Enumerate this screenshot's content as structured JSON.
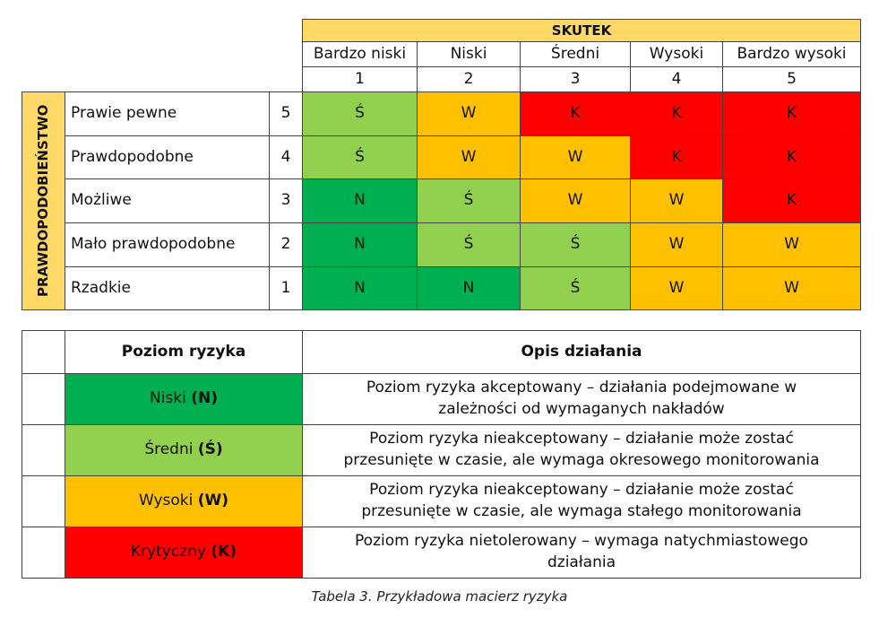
{
  "matrix": {
    "effect_title": "SKUTEK",
    "probability_title": "PRAWDOPODOBIEŃSTWO",
    "columns": [
      {
        "name": "Bardzo niski",
        "number": "1"
      },
      {
        "name": "Niski",
        "number": "2"
      },
      {
        "name": "Średni",
        "number": "3"
      },
      {
        "name": "Wysoki",
        "number": "4"
      },
      {
        "name": "Bardzo wysoki",
        "number": "5"
      }
    ],
    "rows": [
      {
        "label": "Prawie pewne",
        "number": "5",
        "cells": [
          {
            "text": "Ś",
            "color": "#92d050"
          },
          {
            "text": "W",
            "color": "#ffc000"
          },
          {
            "text": "K",
            "color": "#ff0000"
          },
          {
            "text": "K",
            "color": "#ff0000"
          },
          {
            "text": "K",
            "color": "#ff0000"
          }
        ]
      },
      {
        "label": "Prawdopodobne",
        "number": "4",
        "cells": [
          {
            "text": "Ś",
            "color": "#92d050"
          },
          {
            "text": "W",
            "color": "#ffc000"
          },
          {
            "text": "W",
            "color": "#ffc000"
          },
          {
            "text": "K",
            "color": "#ff0000"
          },
          {
            "text": "K",
            "color": "#ff0000"
          }
        ]
      },
      {
        "label": "Możliwe",
        "number": "3",
        "cells": [
          {
            "text": "N",
            "color": "#00b050"
          },
          {
            "text": "Ś",
            "color": "#92d050"
          },
          {
            "text": "W",
            "color": "#ffc000"
          },
          {
            "text": "W",
            "color": "#ffc000"
          },
          {
            "text": "K",
            "color": "#ff0000"
          }
        ]
      },
      {
        "label": "Mało prawdopodobne",
        "number": "2",
        "cells": [
          {
            "text": "N",
            "color": "#00b050"
          },
          {
            "text": "Ś",
            "color": "#92d050"
          },
          {
            "text": "Ś",
            "color": "#92d050"
          },
          {
            "text": "W",
            "color": "#ffc000"
          },
          {
            "text": "W",
            "color": "#ffc000"
          }
        ]
      },
      {
        "label": "Rzadkie",
        "number": "1",
        "cells": [
          {
            "text": "N",
            "color": "#00b050"
          },
          {
            "text": "N",
            "color": "#00b050"
          },
          {
            "text": "Ś",
            "color": "#92d050"
          },
          {
            "text": "W",
            "color": "#ffc000"
          },
          {
            "text": "W",
            "color": "#ffc000"
          }
        ]
      }
    ],
    "header_color": "#ffd966"
  },
  "legend": {
    "headers": [
      "Poziom ryzyka",
      "Opis działania"
    ],
    "levels": [
      {
        "name": "Niski",
        "code": "(N)",
        "color": "#00b050",
        "description": [
          "Poziom ryzyka akceptowany – działania podejmowane w",
          "zależności od wymaganych nakładów"
        ]
      },
      {
        "name": "Średni",
        "code": "(Ś)",
        "color": "#92d050",
        "description": [
          "Poziom ryzyka nieakceptowany – działanie może zostać",
          "przesunięte w czasie, ale wymaga okresowego monitorowania"
        ]
      },
      {
        "name": "Wysoki",
        "code": "(W)",
        "color": "#ffc000",
        "description": [
          "Poziom ryzyka nieakceptowany – działanie może zostać",
          "przesunięte w czasie, ale wymaga stałego monitorowania"
        ]
      },
      {
        "name": "Krytyczny",
        "code": "(K)",
        "color": "#ff0000",
        "description": [
          "Poziom ryzyka nietolerowany – wymaga natychmiastowego",
          "działania"
        ]
      }
    ]
  },
  "caption": "Tabela 3. Przykładowa macierz ryzyka"
}
